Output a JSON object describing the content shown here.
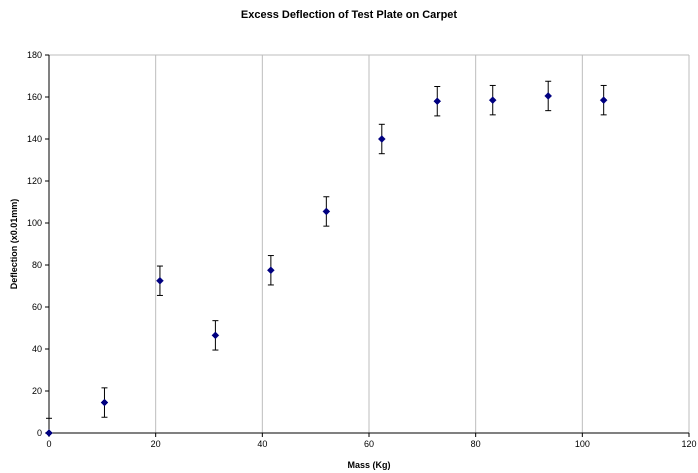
{
  "chart_data": {
    "type": "scatter",
    "title": "Excess Deflection of Test Plate on Carpet",
    "xlabel": "Mass (Kg)",
    "ylabel": "Deflection (x0.01mm)",
    "xlim": [
      0,
      120
    ],
    "ylim": [
      0,
      180
    ],
    "x_ticks": [
      0,
      20,
      40,
      60,
      80,
      100,
      120
    ],
    "y_ticks": [
      0,
      20,
      40,
      60,
      80,
      100,
      120,
      140,
      160,
      180
    ],
    "grid": "vertical",
    "marker": "diamond",
    "marker_color": "#000080",
    "error_bar": 7,
    "points": [
      {
        "x": 0,
        "y": 0
      },
      {
        "x": 10.4,
        "y": 14.5
      },
      {
        "x": 20.8,
        "y": 72.5
      },
      {
        "x": 31.2,
        "y": 46.5
      },
      {
        "x": 41.6,
        "y": 77.5
      },
      {
        "x": 52,
        "y": 105.5
      },
      {
        "x": 62.4,
        "y": 140
      },
      {
        "x": 72.8,
        "y": 158
      },
      {
        "x": 83.2,
        "y": 158.5
      },
      {
        "x": 93.6,
        "y": 160.5
      },
      {
        "x": 104,
        "y": 158.5
      }
    ]
  }
}
